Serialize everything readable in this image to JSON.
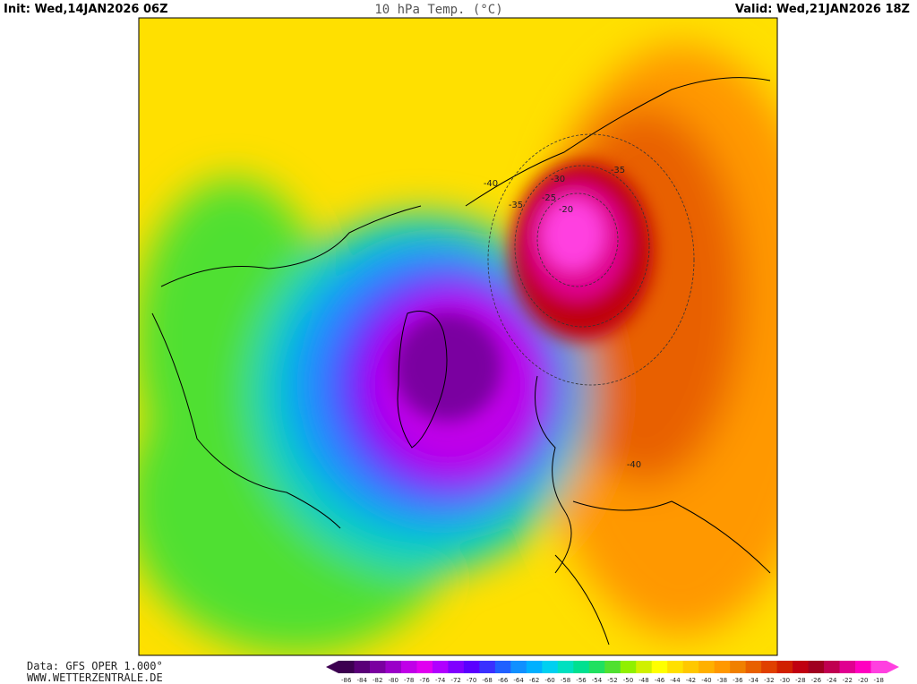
{
  "header": {
    "init": "Init: Wed,14JAN2026 06Z",
    "title": "10 hPa Temp. (°C)",
    "valid": "Valid: Wed,21JAN2026 18Z"
  },
  "footer": {
    "source": "Data: GFS OPER 1.000°",
    "website": "WWW.WETTERZENTRALE.DE"
  },
  "colorbar": {
    "labels": [
      -86,
      -84,
      -82,
      -80,
      -78,
      -76,
      -74,
      -72,
      -70,
      -68,
      -66,
      -64,
      -62,
      -60,
      -58,
      -56,
      -54,
      -52,
      -50,
      -48,
      -46,
      -44,
      -42,
      -40,
      -38,
      -36,
      -34,
      -32,
      -30,
      -28,
      -26,
      -24,
      -22,
      -20,
      -18
    ],
    "colors": [
      "#3c0050",
      "#5a0078",
      "#7a00a0",
      "#9a00c8",
      "#c000e8",
      "#e000f0",
      "#b000ff",
      "#8000ff",
      "#5a00ff",
      "#3a30ff",
      "#2060ff",
      "#1090ff",
      "#00b0ff",
      "#00d0f0",
      "#00e0c0",
      "#00e090",
      "#20e060",
      "#50e030",
      "#90f000",
      "#d0f000",
      "#ffff00",
      "#ffe000",
      "#ffc800",
      "#ffb000",
      "#ff9800",
      "#f08000",
      "#e86000",
      "#e04000",
      "#d02000",
      "#c00010",
      "#a00020",
      "#c00050",
      "#e00090",
      "#ff00c0",
      "#ff40e0"
    ]
  },
  "contour_labels": [
    -40,
    -35,
    -30,
    -25,
    -20,
    -35,
    -40
  ]
}
